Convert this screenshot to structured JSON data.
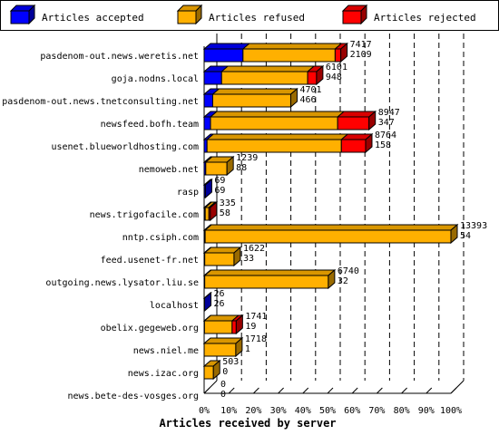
{
  "chart_data": {
    "type": "bar",
    "orientation": "horizontal",
    "stacked": true,
    "three_d": true,
    "xlabel": "Articles received by server",
    "ylabel": "",
    "xlim_percent": [
      0,
      100
    ],
    "xticks": [
      "0%",
      "10%",
      "20%",
      "30%",
      "40%",
      "50%",
      "60%",
      "70%",
      "80%",
      "90%",
      "100%"
    ],
    "legend_position": "top",
    "series": [
      {
        "name": "Articles accepted",
        "color": "#0000ff"
      },
      {
        "name": "Articles refused",
        "color": "#ffb000"
      },
      {
        "name": "Articles rejected",
        "color": "#ff0000"
      }
    ],
    "categories": [
      "pasdenom-out.news.weretis.net",
      "goja.nodns.local",
      "pasdenom-out.news.tnetconsulting.net",
      "newsfeed.bofh.team",
      "usenet.blueworldhosting.com",
      "nemoweb.net",
      "rasp",
      "news.trigofacile.com",
      "nntp.csiph.com",
      "feed.usenet-fr.net",
      "outgoing.news.lysator.liu.se",
      "localhost",
      "obelix.gegeweb.org",
      "news.niel.me",
      "news.izac.org",
      "news.bete-des-vosges.org"
    ],
    "offered": [
      7417,
      6101,
      4701,
      8947,
      8764,
      1239,
      69,
      335,
      13393,
      1622,
      6740,
      26,
      1741,
      1718,
      503,
      0
    ],
    "accepted": [
      2109,
      948,
      466,
      347,
      158,
      88,
      69,
      58,
      54,
      33,
      32,
      26,
      19,
      1,
      0,
      0
    ],
    "refused": [
      5000,
      4670,
      4235,
      6900,
      7290,
      1151,
      0,
      200,
      13339,
      1589,
      6708,
      0,
      1500,
      1717,
      503,
      0
    ],
    "rejected": [
      308,
      483,
      0,
      1700,
      1316,
      0,
      0,
      77,
      0,
      0,
      0,
      0,
      222,
      0,
      0,
      0
    ]
  }
}
